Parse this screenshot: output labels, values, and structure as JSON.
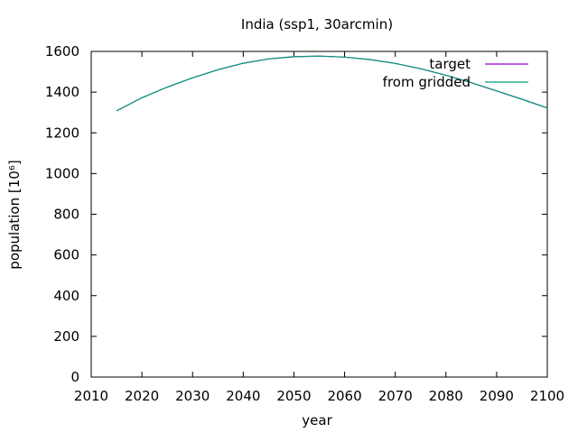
{
  "chart_data": {
    "type": "line",
    "title": "India (ssp1, 30arcmin)",
    "xlabel": "year",
    "ylabel": "population [10⁶]",
    "xlim": [
      2010,
      2100
    ],
    "ylim": [
      0,
      1600
    ],
    "xticks": [
      2010,
      2020,
      2030,
      2040,
      2050,
      2060,
      2070,
      2080,
      2090,
      2100
    ],
    "yticks": [
      0,
      200,
      400,
      600,
      800,
      1000,
      1200,
      1400,
      1600
    ],
    "grid": false,
    "legend_position": "top-right",
    "series": [
      {
        "name": "target",
        "color": "#9400d3",
        "x": [
          2015,
          2020,
          2025,
          2030,
          2035,
          2040,
          2045,
          2050,
          2055,
          2060,
          2065,
          2070,
          2075,
          2080,
          2085,
          2090,
          2095,
          2100
        ],
        "y": [
          1308,
          1372,
          1425,
          1470,
          1510,
          1542,
          1563,
          1574,
          1577,
          1572,
          1560,
          1541,
          1515,
          1483,
          1446,
          1406,
          1365,
          1322
        ]
      },
      {
        "name": "from gridded",
        "color": "#009e73",
        "x": [
          2015,
          2020,
          2025,
          2030,
          2035,
          2040,
          2045,
          2050,
          2055,
          2060,
          2065,
          2070,
          2075,
          2080,
          2085,
          2090,
          2095,
          2100
        ],
        "y": [
          1308,
          1372,
          1425,
          1470,
          1510,
          1542,
          1563,
          1574,
          1577,
          1572,
          1560,
          1541,
          1515,
          1483,
          1446,
          1406,
          1365,
          1322
        ]
      }
    ]
  }
}
